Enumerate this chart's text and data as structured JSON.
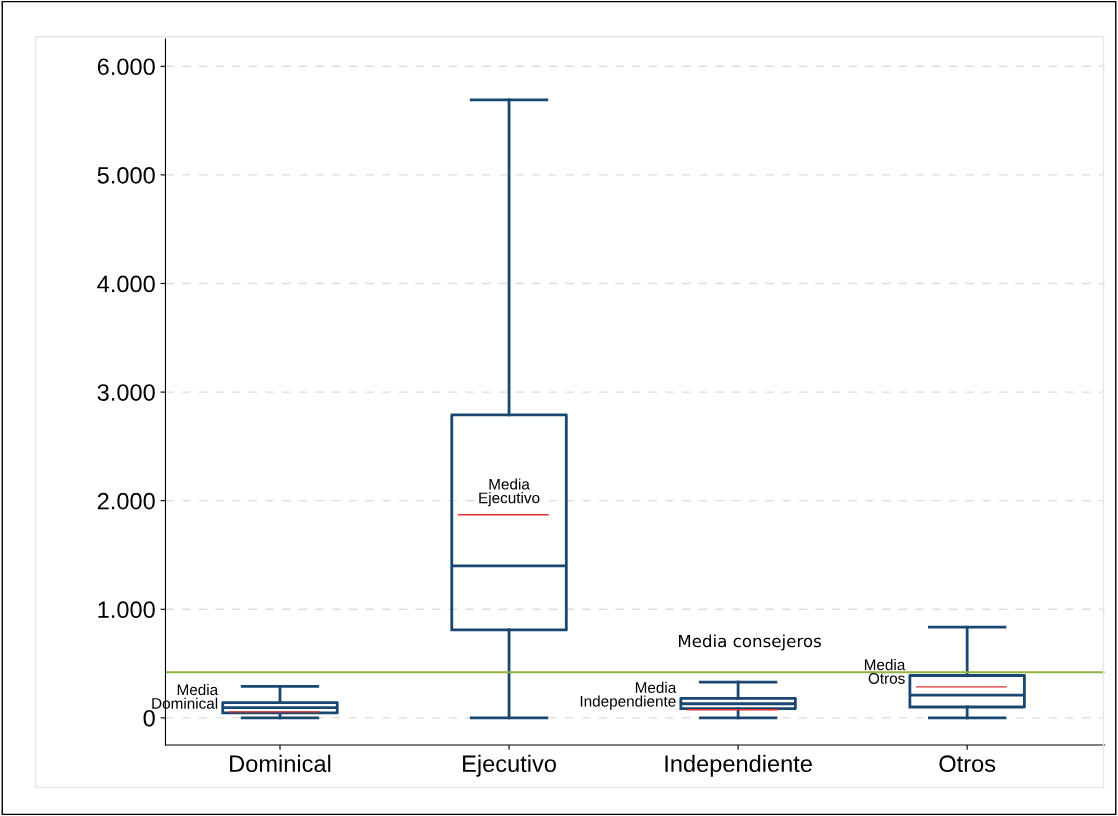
{
  "chart_data": {
    "type": "box",
    "categories": [
      "Dominical",
      "Ejecutivo",
      "Independiente",
      "Otros"
    ],
    "boxes": [
      {
        "low": 0,
        "q1": 45,
        "median": 95,
        "q3": 140,
        "high": 290,
        "mean": 55
      },
      {
        "low": 0,
        "q1": 810,
        "median": 1400,
        "q3": 2790,
        "high": 5690,
        "mean": 1870
      },
      {
        "low": 0,
        "q1": 85,
        "median": 130,
        "q3": 180,
        "high": 330,
        "mean": 75
      },
      {
        "low": 0,
        "q1": 100,
        "median": 210,
        "q3": 390,
        "high": 835,
        "mean": 285
      }
    ],
    "color": "#1a476f",
    "ylim": [
      -250,
      6250
    ],
    "yticks": [
      {
        "value": 0,
        "label": "0"
      },
      {
        "value": 1000,
        "label": "1.000"
      },
      {
        "value": 2000,
        "label": "2.000"
      },
      {
        "value": 3000,
        "label": "3.000"
      },
      {
        "value": 4000,
        "label": "4.000"
      },
      {
        "value": 5000,
        "label": "5.000"
      },
      {
        "value": 6000,
        "label": "6.000"
      }
    ],
    "grid": "y",
    "ref_lines": [
      {
        "axis": "y",
        "value": 420,
        "label": "Media consejeros",
        "color": "#8db542"
      }
    ],
    "annotations": [
      "Media\nDominical",
      "Media\nEjecutivo",
      "Media\nIndependiente",
      "Media\nOtros"
    ]
  }
}
